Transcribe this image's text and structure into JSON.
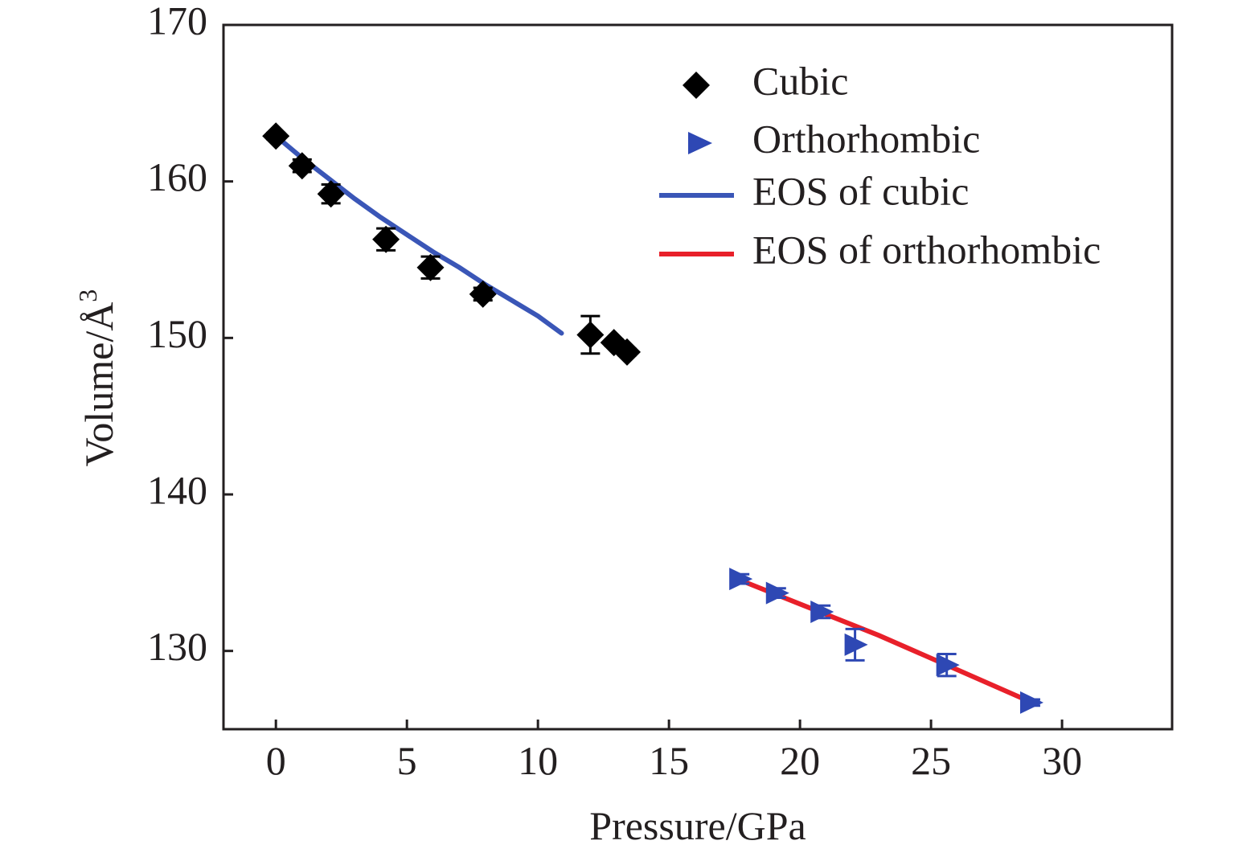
{
  "chart_data": {
    "type": "scatter",
    "xlabel": "Pressure/GPa",
    "ylabel": "Volume/Å",
    "ylabel_sup": "3",
    "xlim": [
      -2,
      34.2
    ],
    "ylim": [
      125,
      170
    ],
    "xticks": [
      0,
      5,
      10,
      15,
      20,
      25,
      30
    ],
    "yticks": [
      130,
      140,
      150,
      160,
      170
    ],
    "legend_position": "top-right",
    "series": [
      {
        "name": "Cubic",
        "kind": "points",
        "marker": "diamond",
        "color": "#000000",
        "points": [
          {
            "x": 0.0,
            "y": 162.9,
            "err": 0.2
          },
          {
            "x": 1.0,
            "y": 161.0,
            "err": 0.4
          },
          {
            "x": 2.1,
            "y": 159.2,
            "err": 0.6
          },
          {
            "x": 4.2,
            "y": 156.3,
            "err": 0.7
          },
          {
            "x": 5.9,
            "y": 154.5,
            "err": 0.7
          },
          {
            "x": 7.9,
            "y": 152.8,
            "err": 0.4
          },
          {
            "x": 12.0,
            "y": 150.2,
            "err": 1.2
          },
          {
            "x": 12.9,
            "y": 149.7,
            "err": 0.2
          },
          {
            "x": 13.4,
            "y": 149.1,
            "err": 0.2
          }
        ]
      },
      {
        "name": "Orthorhombic",
        "kind": "points",
        "marker": "triangle-right",
        "color": "#2e48b4",
        "points": [
          {
            "x": 17.7,
            "y": 134.6,
            "err": 0.3
          },
          {
            "x": 19.1,
            "y": 133.7,
            "err": 0.3
          },
          {
            "x": 20.8,
            "y": 132.5,
            "err": 0.4
          },
          {
            "x": 22.1,
            "y": 130.4,
            "err": 1.0
          },
          {
            "x": 25.6,
            "y": 129.1,
            "err": 0.7
          },
          {
            "x": 28.8,
            "y": 126.7,
            "err": 0.2
          }
        ]
      },
      {
        "name": "EOS of cubic",
        "kind": "line",
        "color": "#3a56b7",
        "points": [
          {
            "x": 0.0,
            "y": 162.9
          },
          {
            "x": 1.0,
            "y": 161.5
          },
          {
            "x": 2.0,
            "y": 160.2
          },
          {
            "x": 3.0,
            "y": 158.9
          },
          {
            "x": 4.0,
            "y": 157.7
          },
          {
            "x": 5.0,
            "y": 156.6
          },
          {
            "x": 6.0,
            "y": 155.5
          },
          {
            "x": 7.0,
            "y": 154.5
          },
          {
            "x": 8.0,
            "y": 153.4
          },
          {
            "x": 9.0,
            "y": 152.4
          },
          {
            "x": 10.0,
            "y": 151.4
          },
          {
            "x": 10.9,
            "y": 150.3
          }
        ]
      },
      {
        "name": "EOS of orthorhombic",
        "kind": "line",
        "color": "#e8202a",
        "points": [
          {
            "x": 17.6,
            "y": 134.6
          },
          {
            "x": 20.0,
            "y": 133.0
          },
          {
            "x": 23.0,
            "y": 131.0
          },
          {
            "x": 26.0,
            "y": 128.8
          },
          {
            "x": 29.0,
            "y": 126.6
          }
        ]
      }
    ]
  }
}
